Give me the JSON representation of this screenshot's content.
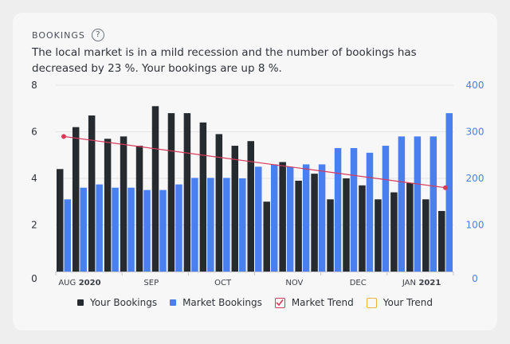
{
  "header": {
    "title": "BOOKINGS",
    "help_glyph": "?"
  },
  "description": "The local market is in a mild recession and the number of bookings has decreased by 23 %. Your bookings are up 8 %.",
  "colors": {
    "your_bookings": "#262b30",
    "market_bookings": "#4a7ff0",
    "market_trend": "#d83a5a",
    "your_trend": "#e8b33c",
    "left_axis": "#2e3238",
    "right_axis": "#4a7ff0"
  },
  "legend": {
    "your_bookings": "Your Bookings",
    "market_bookings": "Market Bookings",
    "market_trend": "Market Trend",
    "your_trend": "Your Trend"
  },
  "chart_data": {
    "type": "bar",
    "left_axis": {
      "ticks": [
        "0",
        "2",
        "4",
        "6",
        "8"
      ],
      "range": [
        0,
        8
      ]
    },
    "right_axis": {
      "ticks": [
        "0",
        "100",
        "200",
        "300",
        "400"
      ],
      "range": [
        0,
        400
      ]
    },
    "x_ticks": [
      {
        "label": "AUG",
        "year": "2020",
        "index": 1
      },
      {
        "label": "SEP",
        "year": "",
        "index": 5.5
      },
      {
        "label": "OCT",
        "year": "",
        "index": 10
      },
      {
        "label": "NOV",
        "year": "",
        "index": 14.5
      },
      {
        "label": "DEC",
        "year": "",
        "index": 18.5
      },
      {
        "label": "JAN",
        "year": "2021",
        "index": 22.5
      }
    ],
    "series": [
      {
        "name": "Your Bookings",
        "axis": "left",
        "values": [
          4.4,
          6.2,
          6.7,
          5.7,
          5.8,
          5.4,
          7.1,
          6.8,
          6.8,
          6.4,
          5.9,
          5.4,
          5.6,
          3.0,
          4.7,
          3.9,
          4.2,
          3.1,
          4.0,
          3.7,
          3.1,
          3.4,
          3.8,
          3.1,
          2.6
        ]
      },
      {
        "name": "Market Bookings",
        "axis": "right",
        "values": [
          155,
          180,
          187,
          180,
          180,
          175,
          175,
          187,
          201,
          201,
          201,
          200,
          225,
          230,
          225,
          230,
          230,
          265,
          265,
          255,
          270,
          290,
          290,
          290,
          340
        ]
      },
      {
        "name": "Market Trend",
        "axis": "left",
        "type": "line",
        "x_index": [
          0,
          24
        ],
        "values": [
          5.8,
          3.6
        ]
      }
    ]
  }
}
